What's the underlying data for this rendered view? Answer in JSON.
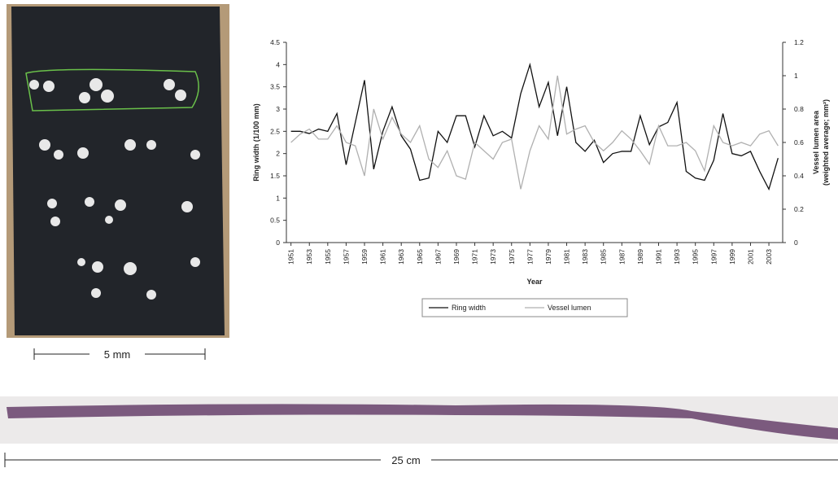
{
  "chart_data": {
    "type": "line",
    "y_label": "Ring width (1/100 mm)",
    "y2_label": [
      "Vessel lumen area",
      "(weighted average; mm²)"
    ],
    "x_label": "Year",
    "x": [
      1951,
      1952,
      1953,
      1954,
      1955,
      1956,
      1957,
      1958,
      1959,
      1960,
      1961,
      1962,
      1963,
      1964,
      1965,
      1966,
      1967,
      1968,
      1969,
      1970,
      1971,
      1972,
      1973,
      1974,
      1975,
      1976,
      1977,
      1978,
      1979,
      1980,
      1981,
      1982,
      1983,
      1984,
      1985,
      1986,
      1987,
      1988,
      1989,
      1990,
      1991,
      1992,
      1993,
      1994,
      1995,
      1996,
      1997,
      1998,
      1999,
      2000,
      2001,
      2002,
      2003,
      2004
    ],
    "xlim": [
      1950.5,
      2004.5
    ],
    "xticks": [
      1951,
      1953,
      1955,
      1957,
      1959,
      1961,
      1963,
      1965,
      1967,
      1969,
      1971,
      1973,
      1975,
      1977,
      1979,
      1981,
      1983,
      1985,
      1987,
      1989,
      1991,
      1993,
      1995,
      1997,
      1999,
      2001,
      2003
    ],
    "ylim": [
      0,
      4.5
    ],
    "yticks": [
      0,
      0.5,
      1,
      1.5,
      2,
      2.5,
      3,
      3.5,
      4,
      4.5
    ],
    "y2lim": [
      0,
      1.2
    ],
    "y2ticks": [
      0,
      0.2,
      0.4,
      0.6,
      0.8,
      1,
      1.2
    ],
    "legend": "bottom",
    "series": [
      {
        "name": "Ring width",
        "color": "#111111",
        "values": [
          2.5,
          2.5,
          2.45,
          2.55,
          2.5,
          2.9,
          1.75,
          2.7,
          3.65,
          1.65,
          2.5,
          3.05,
          2.4,
          2.1,
          1.4,
          1.45,
          2.5,
          2.25,
          2.85,
          2.85,
          2.15,
          2.85,
          2.4,
          2.5,
          2.35,
          3.35,
          4.0,
          3.05,
          3.6,
          2.4,
          3.5,
          2.25,
          2.05,
          2.3,
          1.8,
          2.0,
          2.05,
          2.05,
          2.85,
          2.2,
          2.6,
          2.7,
          3.15,
          1.6,
          1.45,
          1.4,
          1.85,
          2.9,
          2.0,
          1.95,
          2.05,
          1.6,
          1.2,
          1.9
        ]
      },
      {
        "name": "Vessel lumen",
        "color": "#b0b0b0",
        "axis": "y2",
        "values": [
          0.6,
          0.65,
          0.68,
          0.62,
          0.62,
          0.7,
          0.6,
          0.58,
          0.4,
          0.8,
          0.62,
          0.75,
          0.65,
          0.6,
          0.7,
          0.5,
          0.45,
          0.55,
          0.4,
          0.38,
          0.6,
          0.55,
          0.5,
          0.6,
          0.62,
          0.32,
          0.55,
          0.7,
          0.62,
          1.0,
          0.65,
          0.68,
          0.7,
          0.6,
          0.55,
          0.6,
          0.67,
          0.62,
          0.55,
          0.47,
          0.7,
          0.58,
          0.58,
          0.6,
          0.55,
          0.43,
          0.7,
          0.6,
          0.58,
          0.6,
          0.58,
          0.65,
          0.67,
          0.58
        ]
      }
    ]
  },
  "scale_bars": {
    "photo": "5 mm",
    "strip": "25 cm"
  }
}
